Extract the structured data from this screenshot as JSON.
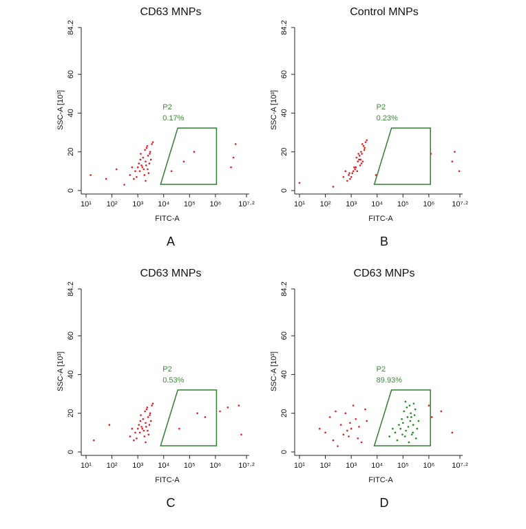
{
  "chart_data": [
    {
      "type": "scatter",
      "title": "CD63 MNPs",
      "panel_label": "A",
      "x_label": "FITC-A",
      "y_label": "SSC-A [10³]",
      "log_x": true,
      "xlim": [
        10,
        15848932
      ],
      "ylim": [
        0,
        84.2
      ],
      "xticks": [
        {
          "value": 10,
          "label": "10¹"
        },
        {
          "value": 100,
          "label": "10²"
        },
        {
          "value": 1000,
          "label": "10³"
        },
        {
          "value": 10000,
          "label": "10⁴"
        },
        {
          "value": 100000,
          "label": "10⁵"
        },
        {
          "value": 1000000,
          "label": "10⁶"
        },
        {
          "value": 15848932,
          "label": "10⁷·²"
        }
      ],
      "yticks": [
        0,
        20,
        40,
        60,
        84.2
      ],
      "gate": {
        "name": "P2",
        "value": 0.17,
        "value_label": "0.17%",
        "color": "#2e7d32",
        "x": [
          7600,
          35000,
          1100000,
          1100000
        ],
        "y": [
          3.2,
          32.3,
          32.3,
          3.2
        ]
      },
      "series": [
        {
          "color": "#e8191e",
          "x": [
            1500,
            2000,
            1200,
            2500,
            3000,
            1800,
            900,
            2200,
            2800,
            1000,
            1600,
            3500,
            700,
            2400,
            1300,
            2000,
            3200,
            1100,
            1900,
            2600,
            800,
            1400,
            3800,
            500,
            2100,
            1700,
            2900,
            600,
            1250,
            2300,
            15,
            60,
            150,
            300,
            60000,
            150000,
            4000000,
            5000000,
            6000000,
            20000
          ],
          "y": [
            12,
            15,
            10,
            18,
            20,
            8,
            7,
            22,
            14,
            12,
            17,
            24,
            6,
            11,
            19,
            5,
            16,
            14,
            21,
            9,
            10,
            13,
            25,
            8,
            13,
            11,
            19,
            12,
            16,
            23,
            8,
            6,
            11,
            3,
            15,
            20,
            12,
            17,
            24,
            10
          ]
        }
      ]
    },
    {
      "type": "scatter",
      "title": "Control MNPs",
      "panel_label": "B",
      "x_label": "FITC-A",
      "y_label": "SSC-A [10³]",
      "log_x": true,
      "xlim": [
        10,
        15848932
      ],
      "ylim": [
        0,
        84.2
      ],
      "xticks": [
        {
          "value": 10,
          "label": "10¹"
        },
        {
          "value": 100,
          "label": "10²"
        },
        {
          "value": 1000,
          "label": "10³"
        },
        {
          "value": 10000,
          "label": "10⁴"
        },
        {
          "value": 100000,
          "label": "10⁵"
        },
        {
          "value": 1000000,
          "label": "10⁶"
        },
        {
          "value": 15848932,
          "label": "10⁷·²"
        }
      ],
      "yticks": [
        0,
        20,
        40,
        60,
        84.2
      ],
      "gate": {
        "name": "P2",
        "value": 0.23,
        "value_label": "0.23%",
        "color": "#2e7d32",
        "x": [
          7800,
          36000,
          1150000,
          1150000
        ],
        "y": [
          3.2,
          32.3,
          32.3,
          3.2
        ]
      },
      "series": [
        {
          "color": "#e8191e",
          "x": [
            1500,
            2000,
            1200,
            2600,
            3200,
            1000,
            900,
            2400,
            2800,
            1100,
            1800,
            3600,
            700,
            2200,
            1600,
            800,
            3300,
            1300,
            2100,
            2500,
            850,
            1400,
            4000,
            500,
            2300,
            1700,
            3000,
            600,
            1900,
            2700,
            10,
            200,
            1200000,
            8000000,
            10000000,
            15000000,
            9000
          ],
          "y": [
            12,
            16,
            10,
            19,
            21,
            7,
            6,
            20,
            15,
            9,
            15,
            25,
            5,
            13,
            17,
            8,
            22,
            12,
            18,
            14,
            9,
            11,
            26,
            7,
            16,
            10,
            23,
            10,
            19,
            24,
            4,
            2,
            19,
            15,
            20,
            10,
            8
          ]
        }
      ]
    },
    {
      "type": "scatter",
      "title": "CD63 MNPs",
      "panel_label": "C",
      "x_label": "FITC-A",
      "y_label": "SSC-A [10³]",
      "log_x": true,
      "xlim": [
        10,
        15848932
      ],
      "ylim": [
        0,
        84.2
      ],
      "xticks": [
        {
          "value": 10,
          "label": "10¹"
        },
        {
          "value": 100,
          "label": "10²"
        },
        {
          "value": 1000,
          "label": "10³"
        },
        {
          "value": 10000,
          "label": "10⁴"
        },
        {
          "value": 100000,
          "label": "10⁵"
        },
        {
          "value": 1000000,
          "label": "10⁶"
        },
        {
          "value": 15848932,
          "label": "10⁷·²"
        }
      ],
      "yticks": [
        0,
        20,
        40,
        60,
        84.2
      ],
      "gate": {
        "name": "P2",
        "value": 0.53,
        "value_label": "0.53%",
        "color": "#2e7d32",
        "x": [
          7600,
          35000,
          1100000,
          1100000
        ],
        "y": [
          3.2,
          32,
          32,
          3.2
        ]
      },
      "series": [
        {
          "color": "#e8191e",
          "x": [
            1500,
            2000,
            1200,
            2500,
            3000,
            1800,
            900,
            2200,
            2800,
            1000,
            1600,
            3500,
            700,
            2400,
            1300,
            2000,
            3200,
            1100,
            1900,
            2600,
            800,
            1400,
            3800,
            500,
            2100,
            1700,
            2900,
            600,
            1250,
            2300,
            200000,
            400000,
            1500000,
            3000000,
            8000000,
            40000,
            10000000,
            20,
            80
          ],
          "y": [
            12,
            15,
            10,
            18,
            20,
            8,
            7,
            22,
            14,
            12,
            17,
            24,
            6,
            11,
            19,
            5,
            16,
            14,
            21,
            9,
            10,
            13,
            25,
            8,
            13,
            11,
            19,
            12,
            16,
            23,
            20,
            18,
            21,
            23,
            24,
            12,
            9,
            6,
            14
          ]
        }
      ]
    },
    {
      "type": "scatter",
      "title": "CD63 MNPs",
      "panel_label": "D",
      "x_label": "FITC-A",
      "y_label": "SSC-A [10³]",
      "log_x": true,
      "xlim": [
        10,
        15848932
      ],
      "ylim": [
        0,
        84.2
      ],
      "xticks": [
        {
          "value": 10,
          "label": "10¹"
        },
        {
          "value": 100,
          "label": "10²"
        },
        {
          "value": 1000,
          "label": "10³"
        },
        {
          "value": 10000,
          "label": "10⁴"
        },
        {
          "value": 100000,
          "label": "10⁵"
        },
        {
          "value": 1000000,
          "label": "10⁶"
        },
        {
          "value": 15848932,
          "label": "10⁷·²"
        }
      ],
      "yticks": [
        0,
        20,
        40,
        60,
        84.2
      ],
      "gate": {
        "name": "P2",
        "value": 89.93,
        "value_label": "89.93%",
        "color": "#2e7d32",
        "x": [
          7800,
          36000,
          1150000,
          1150000
        ],
        "y": [
          3.2,
          32,
          32,
          3.2
        ]
      },
      "series": [
        {
          "color": "#e8191e",
          "x": [
            100,
            200,
            400,
            600,
            800,
            1000,
            1500,
            2500,
            3500,
            300,
            700,
            1200,
            500,
            900,
            2000,
            150,
            250,
            1800,
            4000,
            60,
            1300000,
            3000000,
            8000000,
            1000000
          ],
          "y": [
            10,
            6,
            14,
            20,
            8,
            12,
            17,
            5,
            22,
            3,
            11,
            24,
            9,
            15,
            13,
            18,
            21,
            7,
            16,
            12,
            18,
            21,
            10,
            24
          ]
        },
        {
          "color": "#1a8a1a",
          "x": [
            50000,
            80000,
            100000,
            120000,
            150000,
            200000,
            250000,
            300000,
            400000,
            60000,
            90000,
            130000,
            180000,
            220000,
            280000,
            350000,
            70000,
            110000,
            160000,
            240000,
            30000,
            40000,
            140000,
            190000,
            260000,
            320000,
            95000,
            170000,
            210000,
            125000
          ],
          "y": [
            10,
            12,
            15,
            8,
            18,
            20,
            14,
            22,
            16,
            6,
            17,
            11,
            24,
            9,
            19,
            12,
            14,
            21,
            13,
            10,
            8,
            12,
            23,
            16,
            25,
            7,
            9,
            5,
            18,
            26
          ]
        }
      ]
    }
  ]
}
